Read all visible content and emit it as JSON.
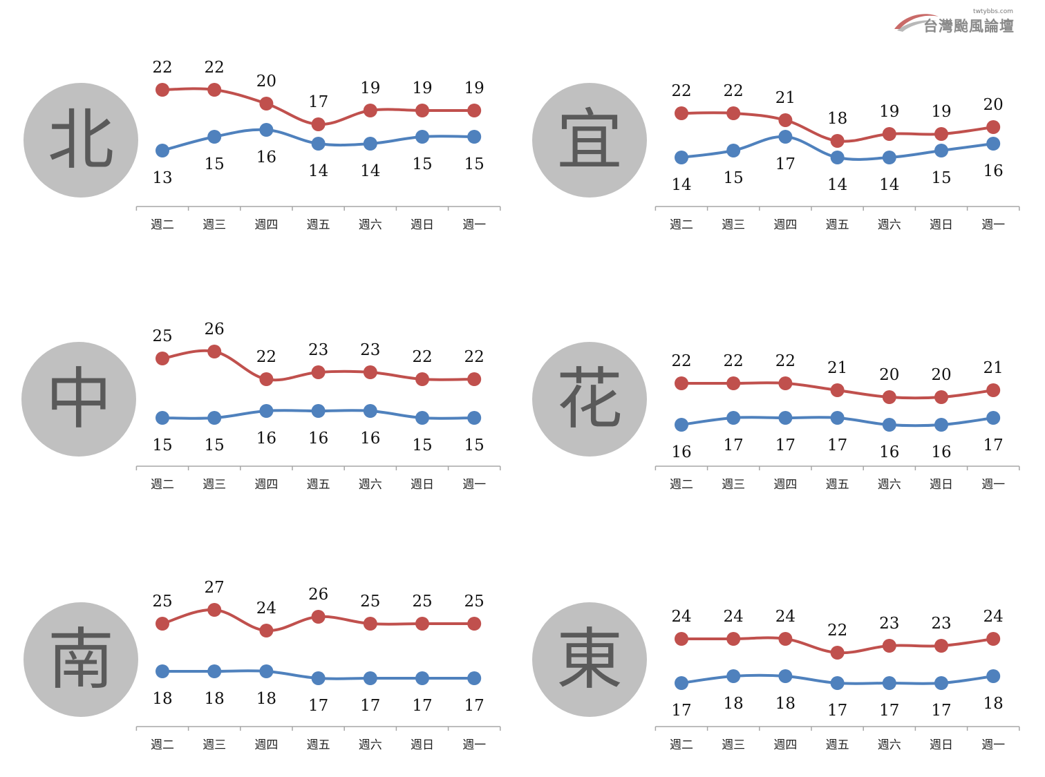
{
  "logo": {
    "url": "twtybbs.com",
    "name": "台灣颱風論壇"
  },
  "colors": {
    "high": "#c0504d",
    "low": "#4f81bd",
    "circle": "#c0c0c0",
    "region_text": "#5a5a5a",
    "axis": "#a6a6a6"
  },
  "chart_data": [
    {
      "type": "line",
      "region": "北",
      "categories": [
        "週二",
        "週三",
        "週四",
        "週五",
        "週六",
        "週日",
        "週一"
      ],
      "series": [
        {
          "values": [
            22,
            22,
            20,
            17,
            19,
            19,
            19
          ]
        },
        {
          "values": [
            13,
            15,
            16,
            14,
            14,
            15,
            15
          ]
        }
      ]
    },
    {
      "type": "line",
      "region": "宜",
      "categories": [
        "週二",
        "週三",
        "週四",
        "週五",
        "週六",
        "週日",
        "週一"
      ],
      "series": [
        {
          "values": [
            22,
            22,
            21,
            18,
            19,
            19,
            20
          ]
        },
        {
          "values": [
            14,
            15,
            17,
            14,
            14,
            15,
            16
          ]
        }
      ]
    },
    {
      "type": "line",
      "region": "中",
      "categories": [
        "週二",
        "週三",
        "週四",
        "週五",
        "週六",
        "週日",
        "週一"
      ],
      "series": [
        {
          "values": [
            25,
            26,
            22,
            23,
            23,
            22,
            22
          ]
        },
        {
          "values": [
            15,
            15,
            16,
            16,
            16,
            15,
            15
          ]
        }
      ]
    },
    {
      "type": "line",
      "region": "花",
      "categories": [
        "週二",
        "週三",
        "週四",
        "週五",
        "週六",
        "週日",
        "週一"
      ],
      "series": [
        {
          "values": [
            22,
            22,
            22,
            21,
            20,
            20,
            21
          ]
        },
        {
          "values": [
            16,
            17,
            17,
            17,
            16,
            16,
            17
          ]
        }
      ]
    },
    {
      "type": "line",
      "region": "南",
      "categories": [
        "週二",
        "週三",
        "週四",
        "週五",
        "週六",
        "週日",
        "週一"
      ],
      "series": [
        {
          "values": [
            25,
            27,
            24,
            26,
            25,
            25,
            25
          ]
        },
        {
          "values": [
            18,
            18,
            18,
            17,
            17,
            17,
            17
          ]
        }
      ]
    },
    {
      "type": "line",
      "region": "東",
      "categories": [
        "週二",
        "週三",
        "週四",
        "週五",
        "週六",
        "週日",
        "週一"
      ],
      "series": [
        {
          "values": [
            24,
            24,
            24,
            22,
            23,
            23,
            24
          ]
        },
        {
          "values": [
            17,
            18,
            18,
            17,
            17,
            17,
            18
          ]
        }
      ]
    }
  ]
}
